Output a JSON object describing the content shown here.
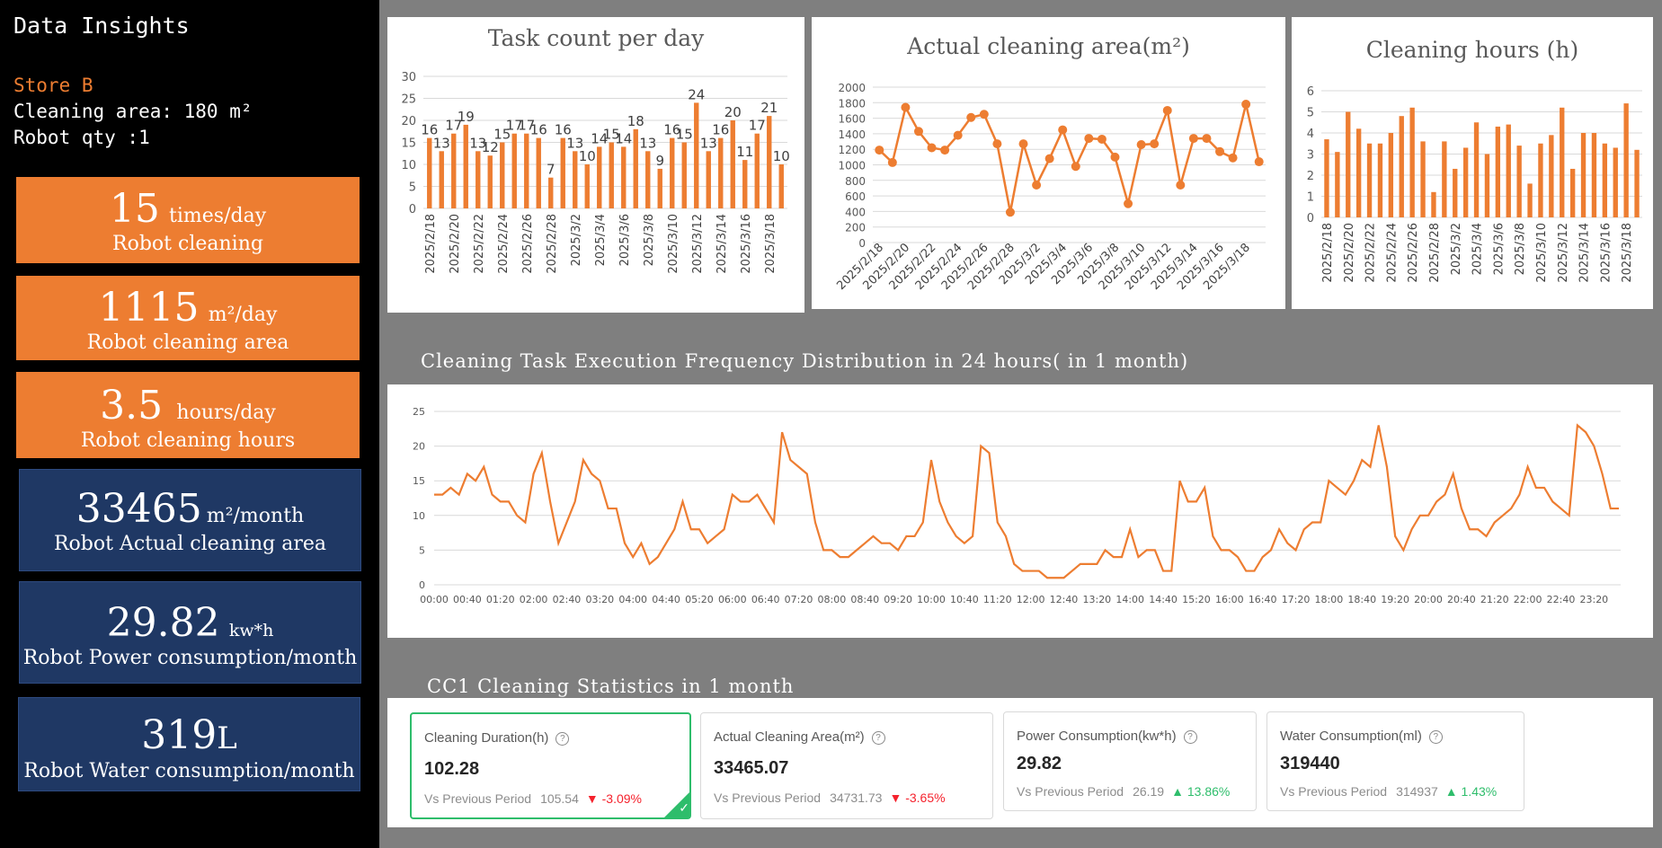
{
  "sidebar": {
    "title": "Data Insights",
    "store": "Store B",
    "area_line": "Cleaning area: 180 m²",
    "robot_line": "Robot qty :1",
    "cards": [
      {
        "value": "15",
        "unit": "times/day",
        "label": "Robot cleaning",
        "style": "orange"
      },
      {
        "value": "1115",
        "unit": "m²/day",
        "label": "Robot cleaning area",
        "style": "orange"
      },
      {
        "value": "3.5",
        "unit": "hours/day",
        "label": "Robot cleaning hours",
        "style": "orange"
      },
      {
        "value": "33465",
        "unit": "m²/month",
        "label": "Robot Actual cleaning area",
        "style": "blue"
      },
      {
        "value": "29.82",
        "unit": "kw*h",
        "label": "Robot Power consumption/month",
        "style": "blue"
      },
      {
        "value": "319",
        "unit": "L",
        "label": "Robot Water consumption/month",
        "style": "blue"
      }
    ]
  },
  "sections": {
    "freq_title": "Cleaning Task Execution Frequency Distribution in 24 hours( in 1 month)",
    "stats_title": "CC1 Cleaning Statistics in 1 month"
  },
  "stats": [
    {
      "title": "Cleaning Duration(h)",
      "value": "102.28",
      "compare_label": "Vs Previous Period",
      "prev": "105.54",
      "change": "▼ -3.09%",
      "dir": "down"
    },
    {
      "title": "Actual Cleaning Area(m²)",
      "value": "33465.07",
      "compare_label": "Vs Previous Period",
      "prev": "34731.73",
      "change": "▼ -3.65%",
      "dir": "down"
    },
    {
      "title": "Power Consumption(kw*h)",
      "value": "29.82",
      "compare_label": "Vs Previous Period",
      "prev": "26.19",
      "change": "▲ 13.86%",
      "dir": "up"
    },
    {
      "title": "Water Consumption(ml)",
      "value": "319440",
      "compare_label": "Vs Previous Period",
      "prev": "314937",
      "change": "▲ 1.43%",
      "dir": "up"
    }
  ],
  "colors": {
    "accent": "#ed7d31",
    "navy": "#1f3864",
    "success": "#2ebd6b",
    "danger": "#f5222d"
  },
  "chart_data": [
    {
      "type": "bar",
      "title": "Task count per day",
      "ylim": [
        0,
        30
      ],
      "yticks": [
        0,
        5,
        10,
        15,
        20,
        25,
        30
      ],
      "grid": true,
      "categories": [
        "2025/2/18",
        "2025/2/19",
        "2025/2/20",
        "2025/2/21",
        "2025/2/22",
        "2025/2/23",
        "2025/2/24",
        "2025/2/25",
        "2025/2/26",
        "2025/2/27",
        "2025/2/28",
        "2025/3/1",
        "2025/3/2",
        "2025/3/3",
        "2025/3/4",
        "2025/3/5",
        "2025/3/6",
        "2025/3/7",
        "2025/3/8",
        "2025/3/9",
        "2025/3/10",
        "2025/3/11",
        "2025/3/12",
        "2025/3/13",
        "2025/3/14",
        "2025/3/15",
        "2025/3/16",
        "2025/3/17",
        "2025/3/18",
        "2025/3/19"
      ],
      "tick_labels": [
        "2025/2/18",
        "2025/2/20",
        "2025/2/22",
        "2025/2/24",
        "2025/2/26",
        "2025/2/28",
        "2025/3/2",
        "2025/3/4",
        "2025/3/6",
        "2025/3/8",
        "2025/3/10",
        "2025/3/12",
        "2025/3/14",
        "2025/3/16",
        "2025/3/18"
      ],
      "values": [
        16,
        13,
        17,
        19,
        13,
        12,
        15,
        17,
        17,
        16,
        7,
        16,
        13,
        10,
        14,
        15,
        14,
        18,
        13,
        9,
        16,
        15,
        24,
        13,
        16,
        20,
        11,
        17,
        21,
        10
      ]
    },
    {
      "type": "line",
      "title": "Actual cleaning area(m²)",
      "ylim": [
        0,
        2000
      ],
      "yticks": [
        0,
        200,
        400,
        600,
        800,
        1000,
        1200,
        1400,
        1600,
        1800,
        2000
      ],
      "grid": true,
      "categories": [
        "2025/2/18",
        "2025/2/19",
        "2025/2/20",
        "2025/2/21",
        "2025/2/22",
        "2025/2/23",
        "2025/2/24",
        "2025/2/25",
        "2025/2/26",
        "2025/2/27",
        "2025/2/28",
        "2025/3/1",
        "2025/3/2",
        "2025/3/3",
        "2025/3/4",
        "2025/3/5",
        "2025/3/6",
        "2025/3/7",
        "2025/3/8",
        "2025/3/9",
        "2025/3/10",
        "2025/3/11",
        "2025/3/12",
        "2025/3/13",
        "2025/3/14",
        "2025/3/15",
        "2025/3/16",
        "2025/3/17",
        "2025/3/18",
        "2025/3/19"
      ],
      "tick_labels": [
        "2025/2/18",
        "2025/2/20",
        "2025/2/22",
        "2025/2/24",
        "2025/2/26",
        "2025/2/28",
        "2025/3/2",
        "2025/3/4",
        "2025/3/6",
        "2025/3/8",
        "2025/3/10",
        "2025/3/12",
        "2025/3/14",
        "2025/3/16",
        "2025/3/18"
      ],
      "values": [
        1190,
        1030,
        1740,
        1430,
        1220,
        1190,
        1380,
        1610,
        1650,
        1270,
        390,
        1270,
        740,
        1080,
        1450,
        980,
        1340,
        1330,
        1100,
        500,
        1260,
        1270,
        1700,
        740,
        1340,
        1340,
        1170,
        1090,
        1780,
        1040
      ]
    },
    {
      "type": "bar",
      "title": "Cleaning hours (h)",
      "ylim": [
        0,
        6
      ],
      "yticks": [
        0,
        1,
        2,
        3,
        4,
        5,
        6
      ],
      "grid": true,
      "categories": [
        "2025/2/18",
        "2025/2/19",
        "2025/2/20",
        "2025/2/21",
        "2025/2/22",
        "2025/2/23",
        "2025/2/24",
        "2025/2/25",
        "2025/2/26",
        "2025/2/27",
        "2025/2/28",
        "2025/3/1",
        "2025/3/2",
        "2025/3/3",
        "2025/3/4",
        "2025/3/5",
        "2025/3/6",
        "2025/3/7",
        "2025/3/8",
        "2025/3/9",
        "2025/3/10",
        "2025/3/11",
        "2025/3/12",
        "2025/3/13",
        "2025/3/14",
        "2025/3/15",
        "2025/3/16",
        "2025/3/17",
        "2025/3/18",
        "2025/3/19"
      ],
      "tick_labels": [
        "2025/2/18",
        "2025/2/20",
        "2025/2/22",
        "2025/2/24",
        "2025/2/26",
        "2025/2/28",
        "2025/3/2",
        "2025/3/4",
        "2025/3/6",
        "2025/3/8",
        "2025/3/10",
        "2025/3/12",
        "2025/3/14",
        "2025/3/16",
        "2025/3/18"
      ],
      "values": [
        3.7,
        3.1,
        5.0,
        4.2,
        3.5,
        3.5,
        4.0,
        4.8,
        5.2,
        3.6,
        1.2,
        3.6,
        2.3,
        3.3,
        4.5,
        3.0,
        4.3,
        4.4,
        3.4,
        1.6,
        3.5,
        3.9,
        5.2,
        2.3,
        4.0,
        4.0,
        3.5,
        3.3,
        5.4,
        3.2
      ]
    },
    {
      "type": "line",
      "title": "",
      "ylim": [
        0,
        25
      ],
      "yticks": [
        0,
        5,
        10,
        15,
        20,
        25
      ],
      "grid": true,
      "x_tick_labels": [
        "00:00",
        "00:40",
        "01:20",
        "02:00",
        "02:40",
        "03:20",
        "04:00",
        "04:40",
        "05:20",
        "06:00",
        "06:40",
        "07:20",
        "08:00",
        "08:40",
        "09:20",
        "10:00",
        "10:40",
        "11:20",
        "12:00",
        "12:40",
        "13:20",
        "14:00",
        "14:40",
        "15:20",
        "16:00",
        "16:40",
        "17:20",
        "18:00",
        "18:40",
        "19:20",
        "20:00",
        "20:40",
        "21:20",
        "22:00",
        "22:40",
        "23:20"
      ],
      "x_minutes_step": 10,
      "values": [
        13,
        13,
        14,
        13,
        16,
        15,
        17,
        13,
        12,
        12,
        10,
        9,
        16,
        19,
        12,
        6,
        9,
        12,
        18,
        16,
        15,
        11,
        11,
        6,
        4,
        6,
        3,
        4,
        6,
        8,
        12,
        8,
        8,
        6,
        7,
        8,
        13,
        12,
        12,
        13,
        11,
        9,
        22,
        18,
        17,
        16,
        9,
        5,
        5,
        4,
        4,
        5,
        6,
        7,
        6,
        6,
        5,
        7,
        7,
        9,
        18,
        12,
        9,
        7,
        6,
        7,
        20,
        19,
        9,
        7,
        3,
        2,
        2,
        2,
        1,
        1,
        1,
        2,
        3,
        3,
        3,
        5,
        4,
        4,
        8,
        4,
        5,
        5,
        2,
        2,
        15,
        12,
        12,
        14,
        7,
        5,
        5,
        4,
        2,
        2,
        4,
        5,
        8,
        6,
        5,
        8,
        9,
        9,
        15,
        14,
        13,
        15,
        18,
        17,
        23,
        17,
        7,
        5,
        8,
        10,
        10,
        12,
        13,
        16,
        11,
        8,
        8,
        7,
        9,
        10,
        11,
        13,
        17,
        14,
        14,
        12,
        11,
        10,
        23,
        22,
        20,
        16,
        11,
        11
      ]
    }
  ]
}
